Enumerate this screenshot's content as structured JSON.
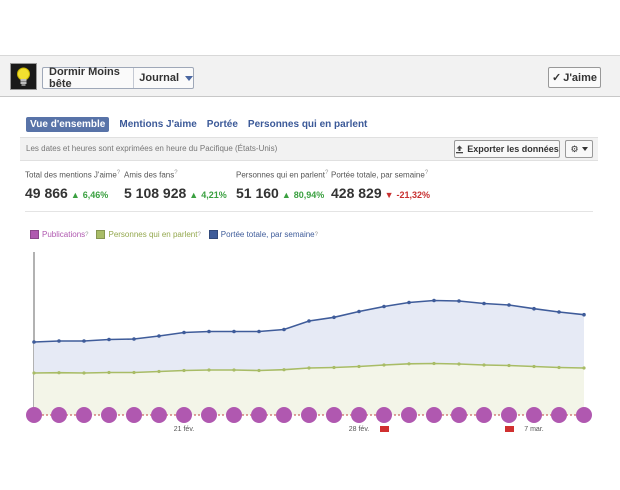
{
  "header": {
    "page_name": "Dormir Moins bête",
    "journal_label": "Journal",
    "like_label": "J'aime",
    "like_check": "✓"
  },
  "tabs": [
    {
      "label": "Vue d'ensemble",
      "active": true
    },
    {
      "label": "Mentions J'aime",
      "active": false
    },
    {
      "label": "Portée",
      "active": false
    },
    {
      "label": "Personnes qui en parlent",
      "active": false
    }
  ],
  "infobar": {
    "timezone_note": "Les dates et heures sont exprimées en heure du Pacifique (États-Unis)",
    "export_label": "Exporter les données"
  },
  "stats": [
    {
      "label": "Total des mentions J'aime",
      "value": "49 866",
      "change": "6,46%",
      "direction": "up"
    },
    {
      "label": "Amis des fans",
      "value": "5 108 928",
      "change": "4,21%",
      "direction": "up"
    },
    {
      "label": "Personnes qui en parlent",
      "value": "51 160",
      "change": "80,94%",
      "direction": "up"
    },
    {
      "label": "Portée totale, par semaine",
      "value": "428 829",
      "change": "-21,32%",
      "direction": "down"
    }
  ],
  "colors": {
    "publications": "#b058b0",
    "people_talking": "#a8bc66",
    "weekly_reach": "#3f5c9a",
    "accent": "#3b5998",
    "up": "#3aa040",
    "down": "#c83030"
  },
  "chart_data": {
    "type": "line",
    "x_ticks": [
      "21 fév.",
      "28 fév.",
      "7 mar."
    ],
    "series": [
      {
        "name": "Publications",
        "values": [
          0,
          0,
          0,
          0,
          0,
          0,
          0,
          0,
          0,
          0,
          0,
          0,
          0,
          0,
          0,
          0,
          0,
          0,
          0,
          0,
          0,
          0,
          0
        ]
      },
      {
        "name": "Personnes qui en parlent",
        "values": [
          29,
          29.3,
          29,
          29.5,
          29.5,
          30.5,
          31.5,
          32,
          32,
          31.5,
          32.3,
          34,
          34.5,
          35.5,
          37,
          38.2,
          38.5,
          38,
          37,
          36.5,
          35.5,
          34.5,
          34
        ]
      },
      {
        "name": "Portée totale, par semaine",
        "values": [
          60,
          61,
          61,
          62.5,
          63,
          66,
          69.5,
          70.5,
          70.5,
          70.5,
          72.5,
          81,
          84.7,
          90.5,
          95.5,
          99.5,
          101.5,
          101,
          98.5,
          97,
          93.3,
          90,
          87.3
        ]
      }
    ]
  }
}
